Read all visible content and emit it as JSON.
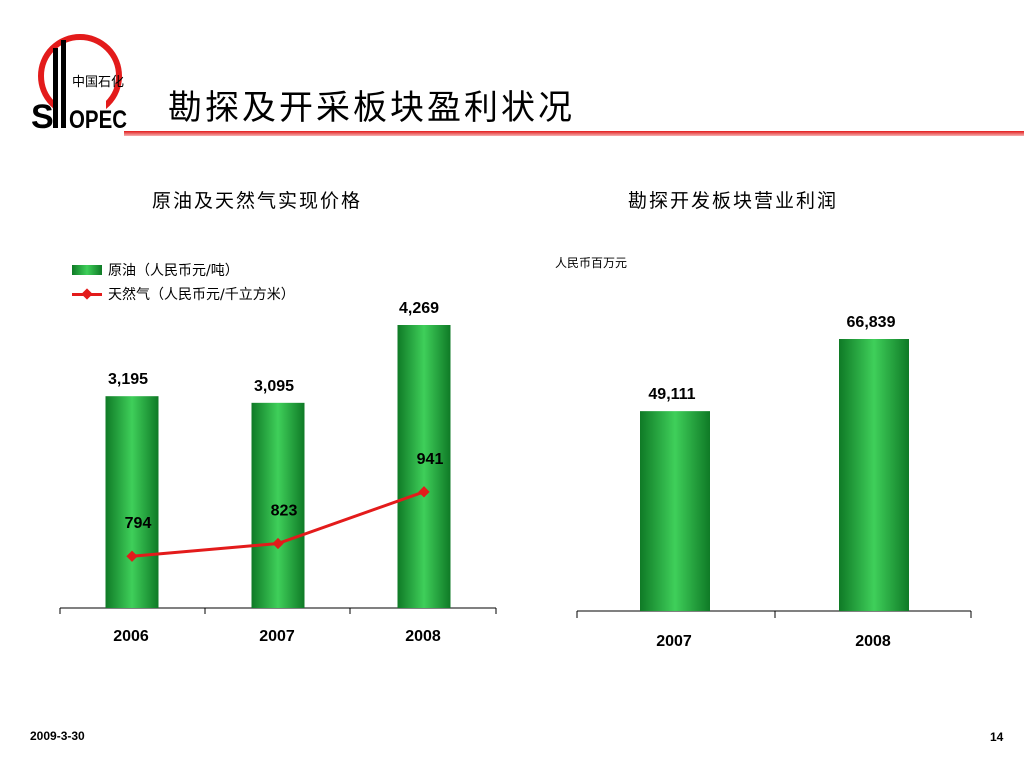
{
  "logo": {
    "chinese_text": "中国石化",
    "brand_text": "SINOPEC"
  },
  "title": "勘探及开采板块盈利状况",
  "footer": {
    "date": "2009-3-30",
    "page": "14"
  },
  "colors": {
    "accent": "#e31b1b",
    "bar_dark": "#0f7a26",
    "bar_light": "#3fcf5a"
  },
  "chart_data": [
    {
      "type": "bar",
      "title": "原油及天然气实现价格",
      "categories": [
        "2006",
        "2007",
        "2008"
      ],
      "series": [
        {
          "name": "原油（人民币元/吨）",
          "type": "bar",
          "values": [
            3195,
            3095,
            4269
          ],
          "labels": [
            "3,195",
            "3,095",
            "4,269"
          ]
        },
        {
          "name": "天然气（人民币元/千立方米）",
          "type": "line",
          "values": [
            794,
            823,
            941
          ],
          "labels": [
            "794",
            "823",
            "941"
          ]
        }
      ],
      "legend": "top-left",
      "grid": false
    },
    {
      "type": "bar",
      "title": "勘探开发板块营业利润",
      "unit": "人民币百万元",
      "categories": [
        "2007",
        "2008"
      ],
      "series": [
        {
          "type": "bar",
          "values": [
            49111,
            66839
          ],
          "labels": [
            "49,111",
            "66,839"
          ]
        }
      ],
      "grid": false
    }
  ]
}
